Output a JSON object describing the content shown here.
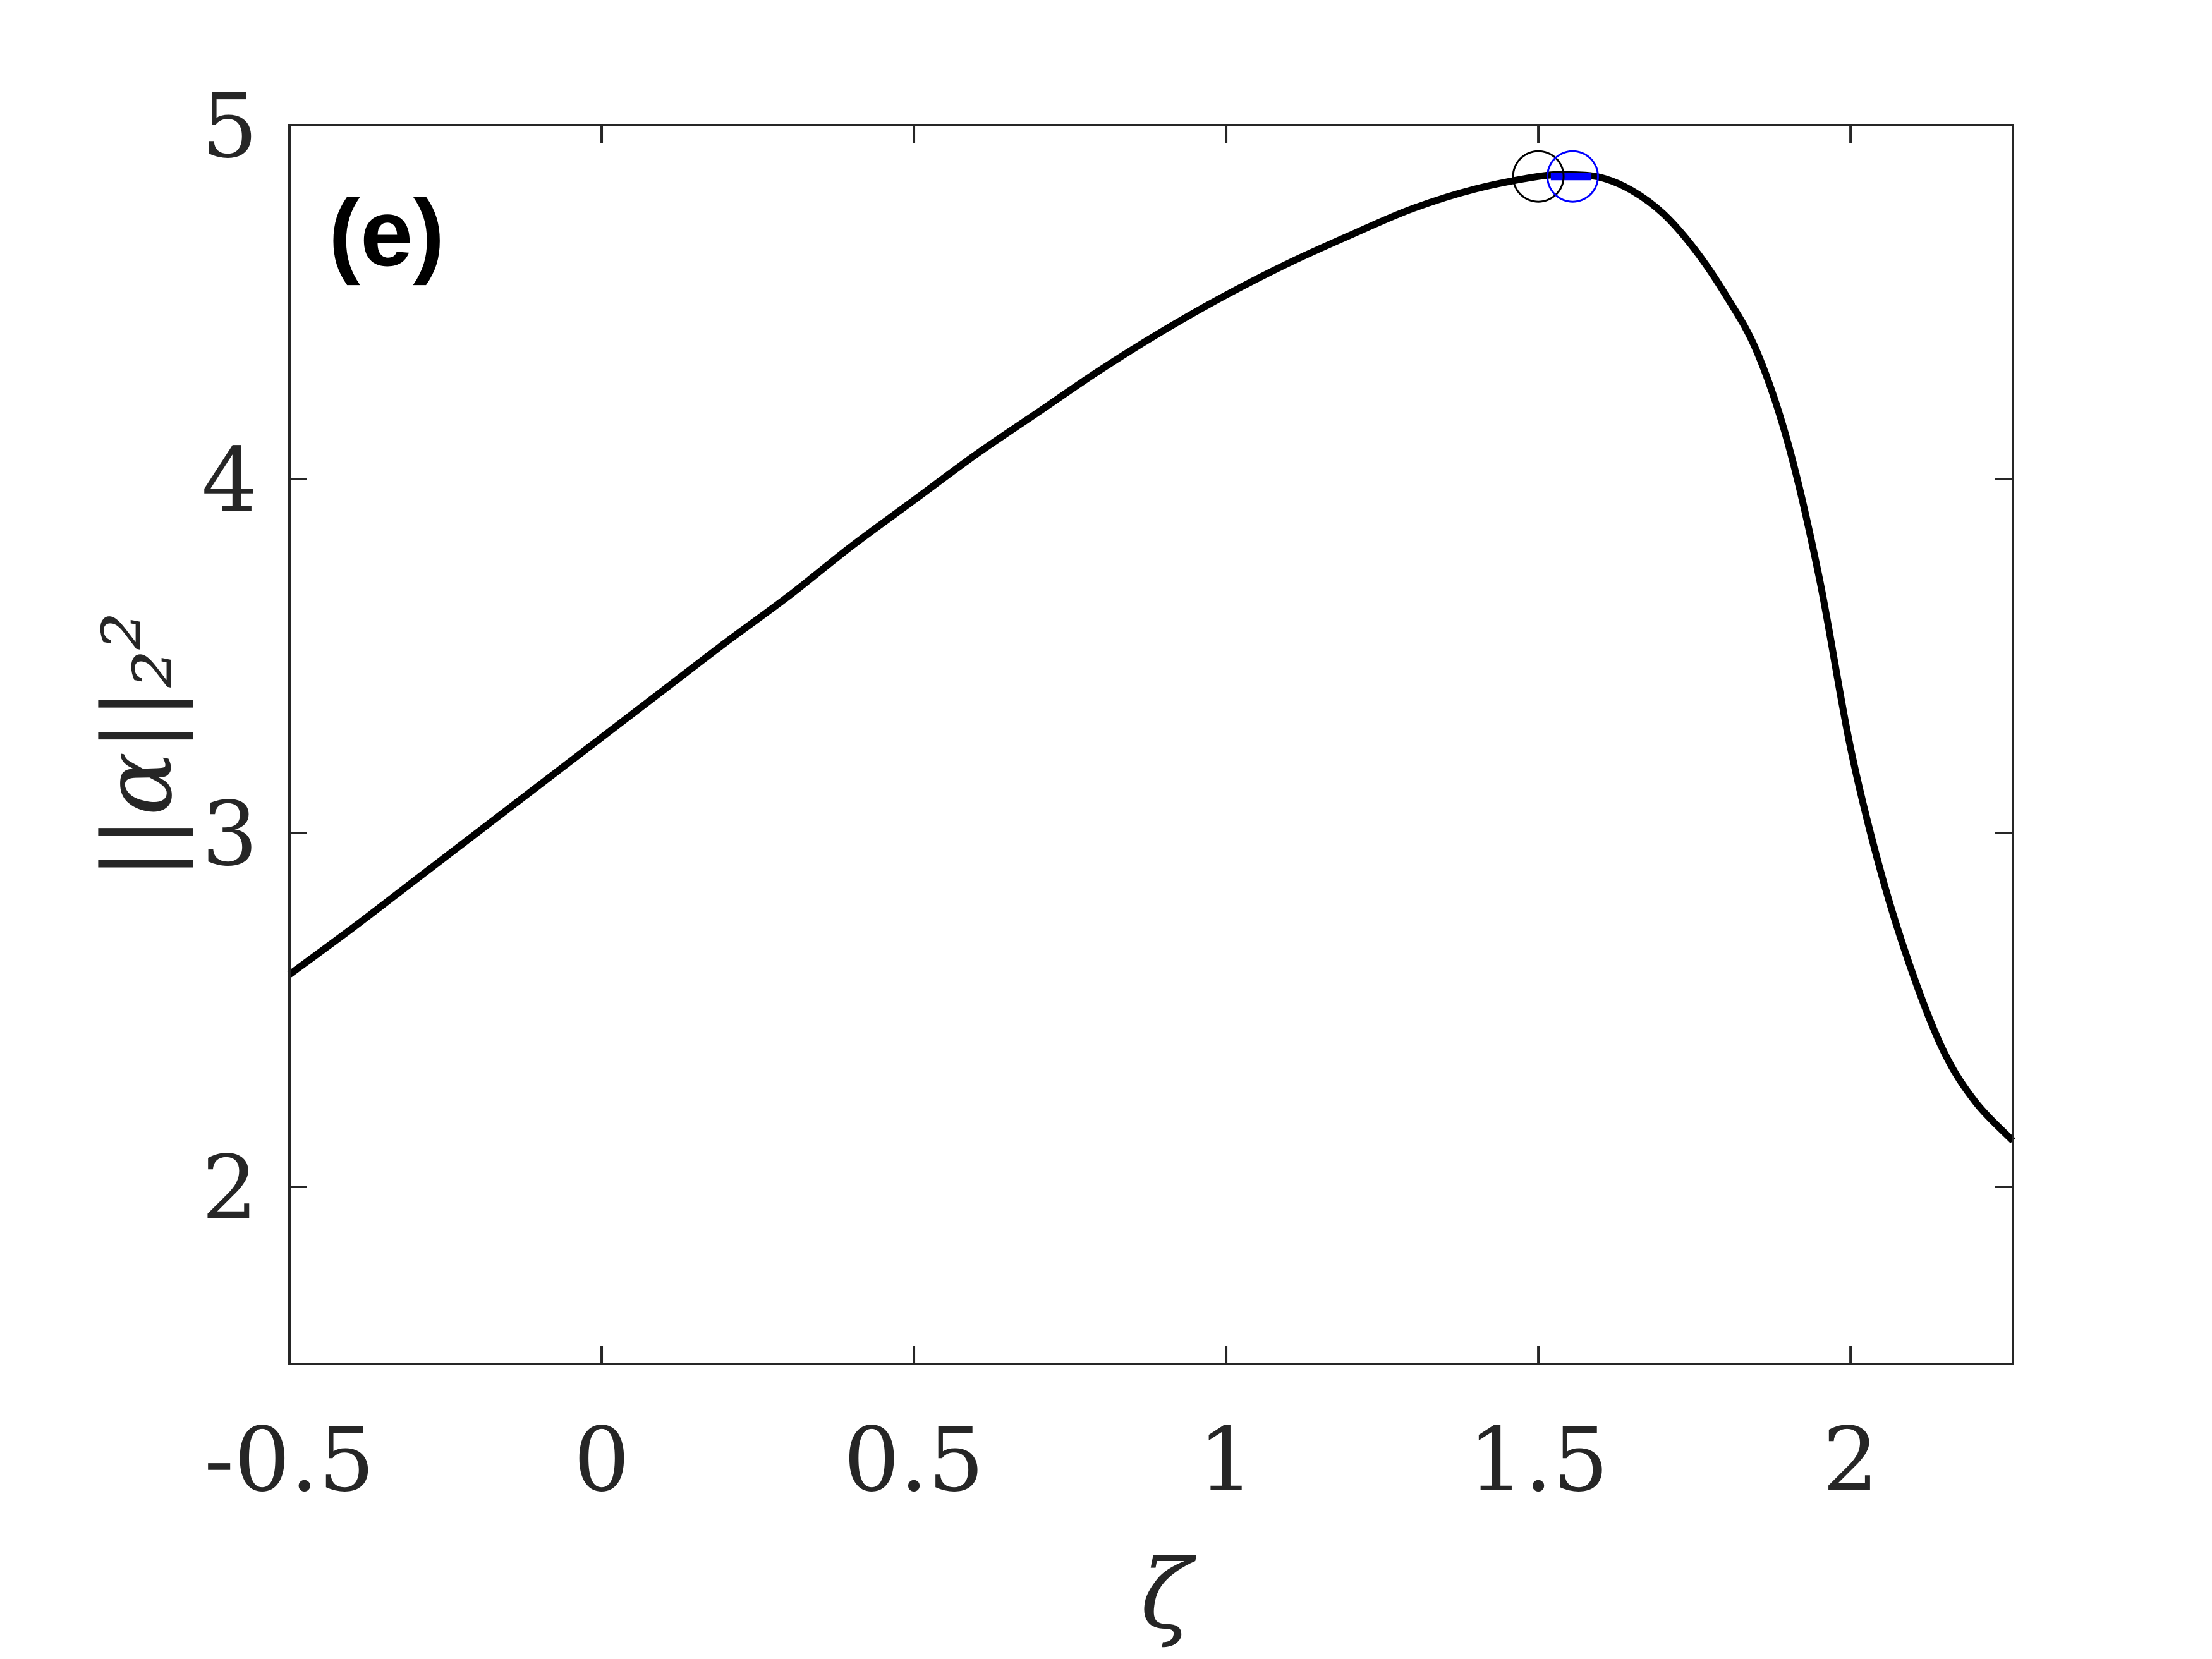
{
  "chart_data": {
    "type": "line",
    "panel_label": "(e)",
    "xlabel": "ζ",
    "ylabel": "||α||₂²",
    "xlim": [
      -0.5,
      2.26
    ],
    "ylim": [
      1.5,
      5.0
    ],
    "xticks": [
      -0.5,
      0,
      0.5,
      1,
      1.5,
      2
    ],
    "xtick_labels": [
      "-0.5",
      "0",
      "0.5",
      "1",
      "1.5",
      "2"
    ],
    "yticks": [
      2,
      3,
      4,
      5
    ],
    "ytick_labels": [
      "2",
      "3",
      "4",
      "5"
    ],
    "grid": false,
    "series": [
      {
        "color": "#000000",
        "x": [
          -0.5,
          -0.4,
          -0.3,
          -0.2,
          -0.1,
          0.0,
          0.1,
          0.2,
          0.3,
          0.4,
          0.5,
          0.6,
          0.7,
          0.8,
          0.9,
          1.0,
          1.1,
          1.2,
          1.3,
          1.4,
          1.5,
          1.55,
          1.6,
          1.65,
          1.7,
          1.75,
          1.8,
          1.85,
          1.9,
          1.95,
          2.0,
          2.05,
          2.1,
          2.15,
          2.2,
          2.26
        ],
        "y": [
          2.6,
          2.73,
          2.865,
          3.0,
          3.135,
          3.27,
          3.405,
          3.54,
          3.67,
          3.81,
          3.94,
          4.07,
          4.19,
          4.31,
          4.42,
          4.52,
          4.61,
          4.69,
          4.765,
          4.82,
          4.855,
          4.86,
          4.852,
          4.815,
          4.75,
          4.65,
          4.52,
          4.36,
          4.1,
          3.72,
          3.24,
          2.88,
          2.6,
          2.38,
          2.24,
          2.13
        ]
      }
    ],
    "markers": [
      {
        "x": 1.5,
        "y": 4.855,
        "color": "#000000",
        "shape": "open-circle"
      },
      {
        "x": 1.555,
        "y": 4.855,
        "color": "#0000ff",
        "shape": "open-circle"
      }
    ],
    "highlight_segment": {
      "x": [
        1.52,
        1.585
      ],
      "color": "#0000ff"
    }
  }
}
